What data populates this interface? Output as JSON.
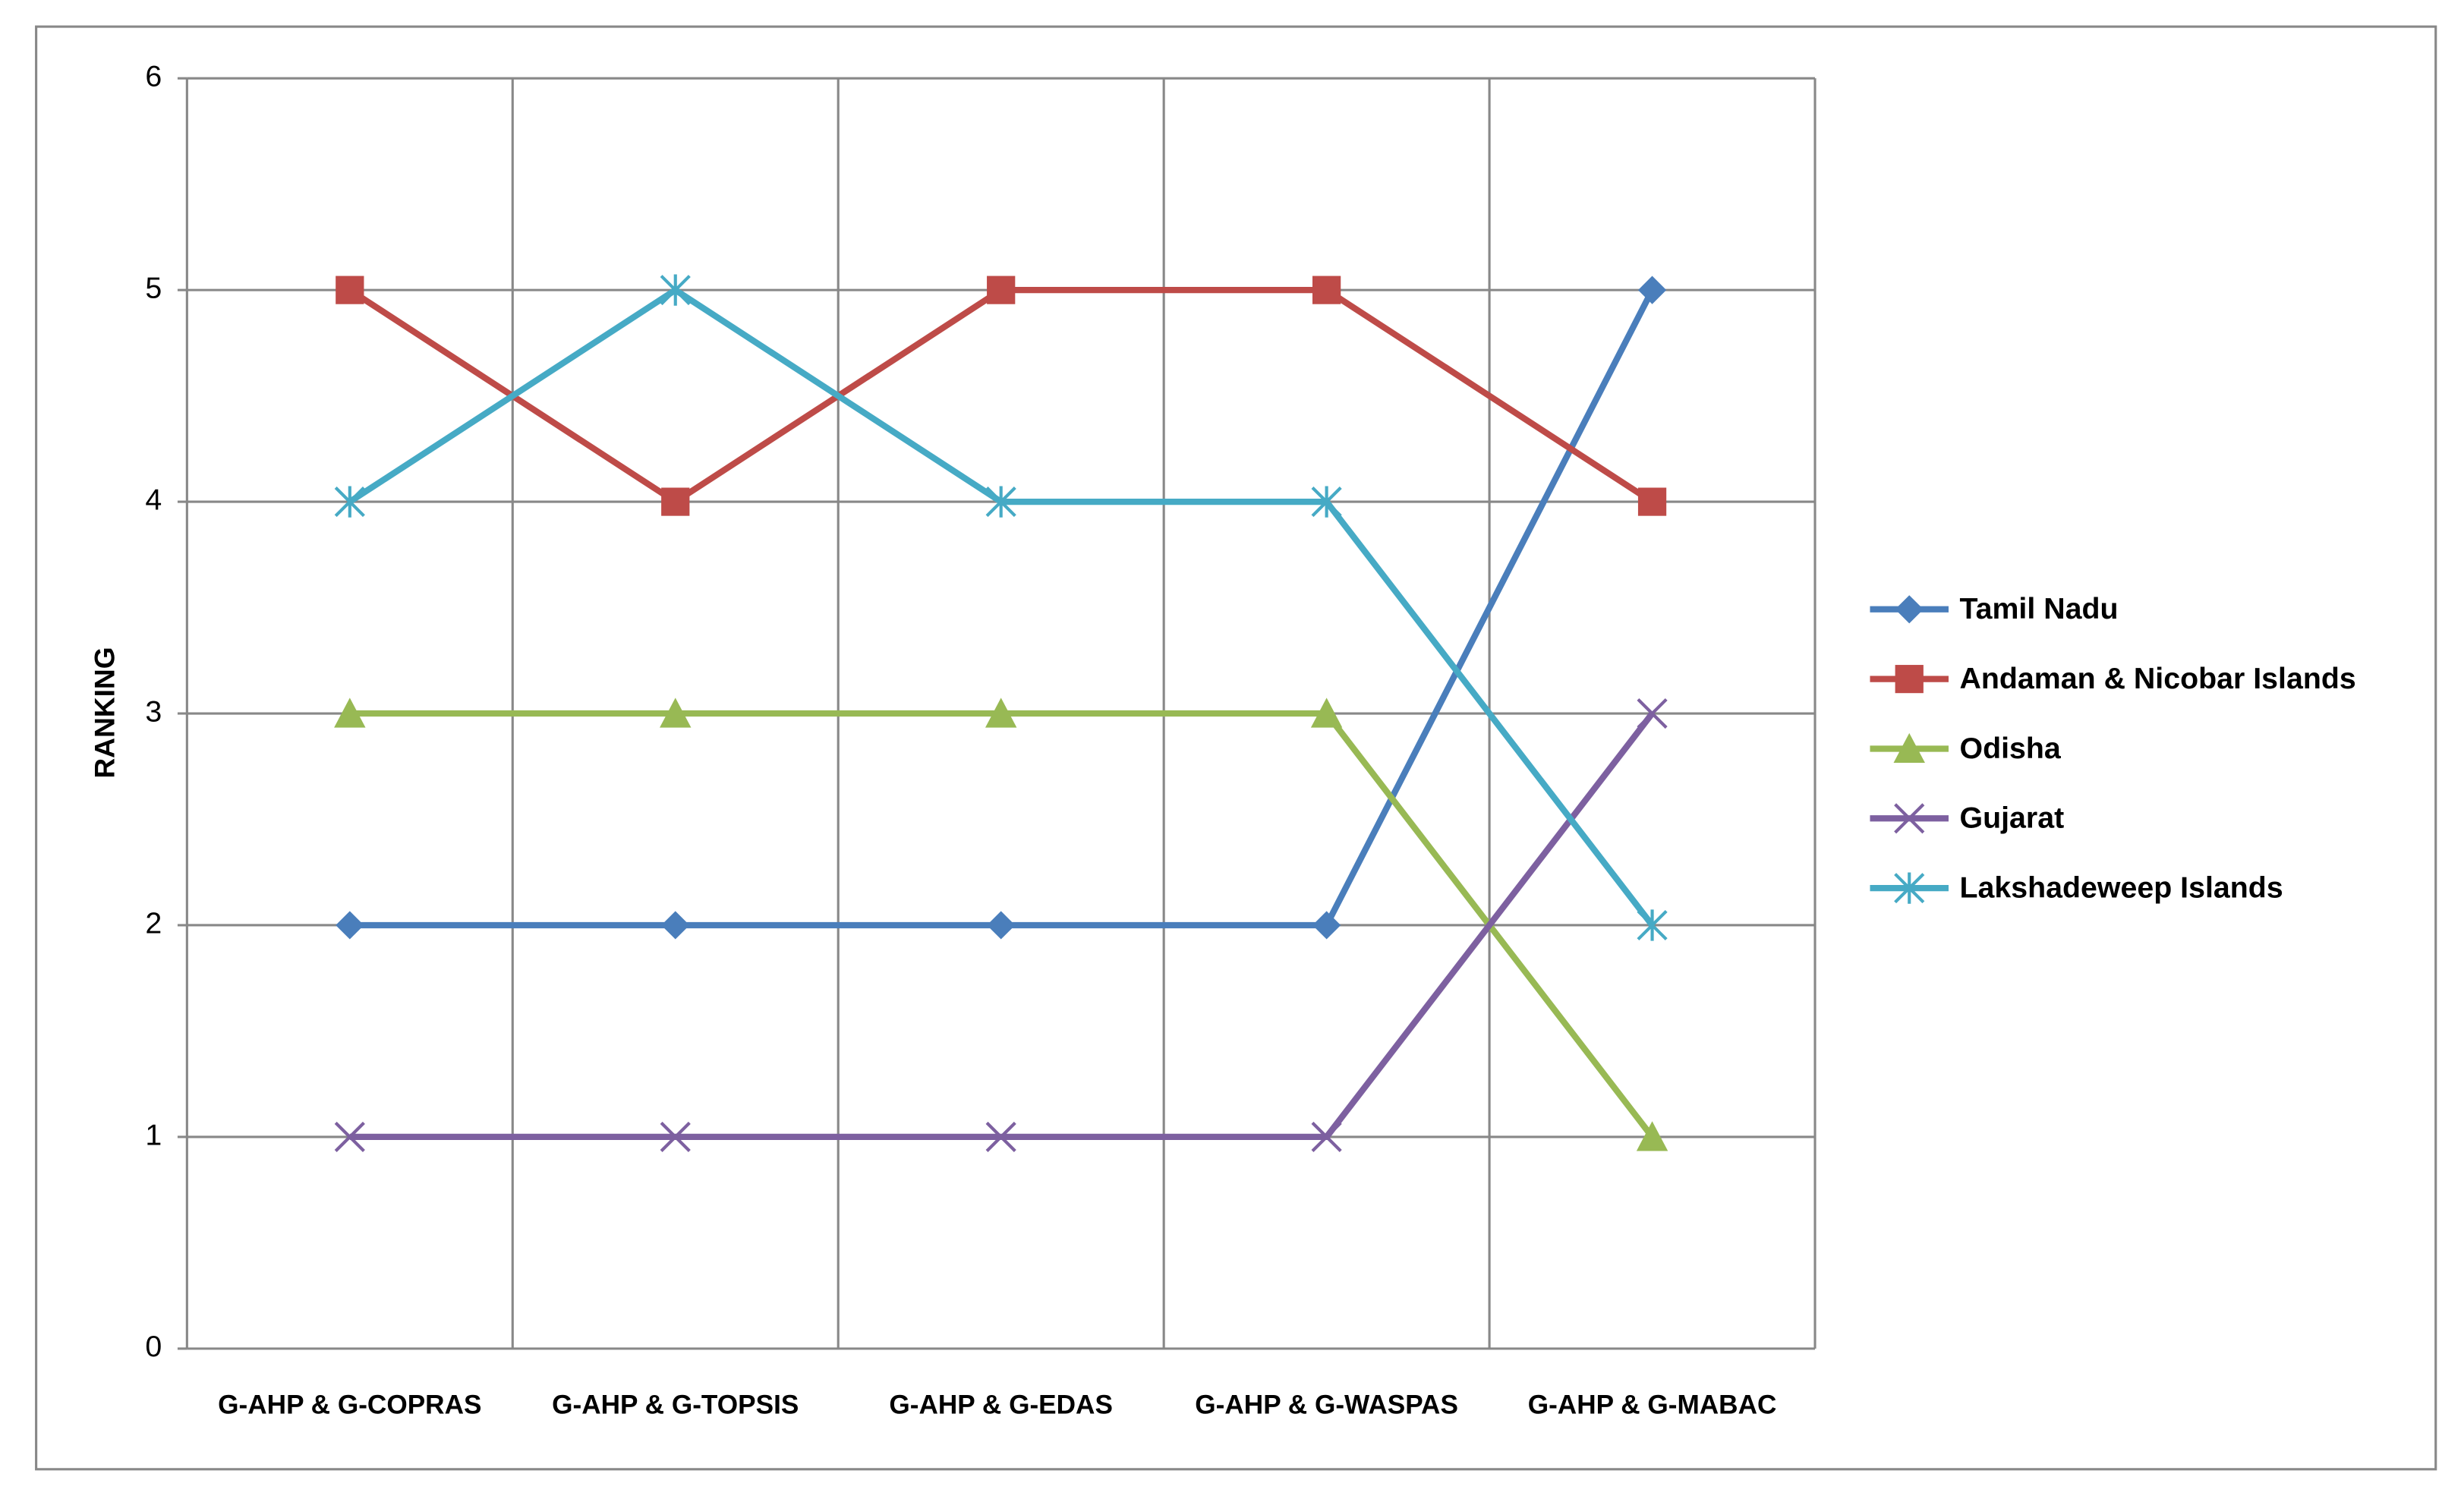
{
  "chart_data": {
    "type": "line",
    "y_label": "RANKING",
    "categories": [
      "G-AHP & G-COPRAS",
      "G-AHP & G-TOPSIS",
      "G-AHP & G-EDAS",
      "G-AHP & G-WASPAS",
      "G-AHP & G-MABAC"
    ],
    "series": [
      {
        "name": "Tamil Nadu",
        "color": "#4a7ebb",
        "marker": "diamond",
        "values": [
          2,
          2,
          2,
          2,
          5
        ]
      },
      {
        "name": "Andaman & Nicobar Islands",
        "color": "#be4b48",
        "marker": "square",
        "values": [
          5,
          4,
          5,
          5,
          4
        ]
      },
      {
        "name": "Odisha",
        "color": "#98b954",
        "marker": "triangle",
        "values": [
          3,
          3,
          3,
          3,
          1
        ]
      },
      {
        "name": "Gujarat",
        "color": "#7d60a0",
        "marker": "x",
        "values": [
          1,
          1,
          1,
          1,
          3
        ]
      },
      {
        "name": "Lakshadeweep Islands",
        "color": "#46aac5",
        "marker": "star",
        "values": [
          4,
          5,
          4,
          4,
          2
        ]
      }
    ],
    "ylim": [
      0,
      6
    ],
    "yticks": [
      0,
      1,
      2,
      3,
      4,
      5,
      6
    ],
    "grid": true,
    "legend": "right"
  }
}
